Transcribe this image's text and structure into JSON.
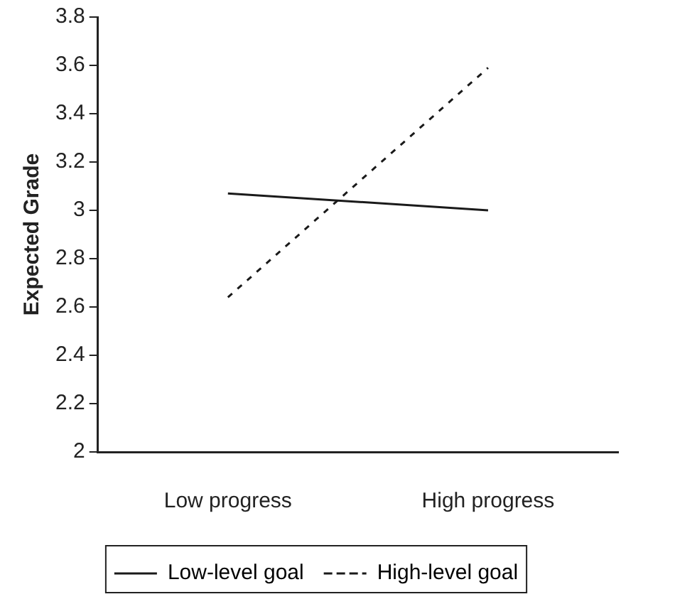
{
  "chart_data": {
    "type": "line",
    "ylabel": "Expected Grade",
    "categories": [
      "Low progress",
      "High progress"
    ],
    "series": [
      {
        "name": "Low-level goal",
        "color": "#1a1a1a",
        "values": [
          3.07,
          3.0
        ],
        "line_style": "solid"
      },
      {
        "name": "High-level goal",
        "color": "#1a1a1a",
        "values": [
          2.64,
          3.59
        ],
        "line_style": "dashed"
      }
    ],
    "ylim": [
      2,
      3.8
    ],
    "yticks": [
      2,
      2.2,
      2.4,
      2.6,
      2.8,
      3,
      3.2,
      3.4,
      3.6,
      3.8
    ],
    "grid": false,
    "legend": "bottom",
    "marker": "none"
  }
}
